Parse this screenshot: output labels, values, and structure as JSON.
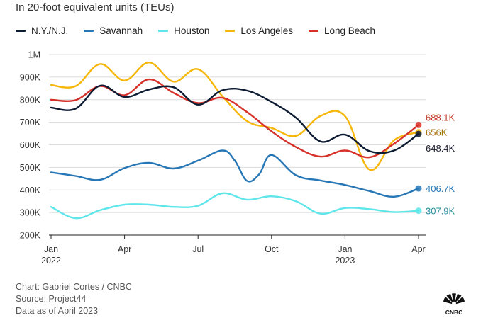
{
  "subtitle": "In 20-foot equivalent units (TEUs)",
  "footer": {
    "credit": "Chart: Gabriel Cortes / CNBC",
    "source": "Source: Project44",
    "asof": "Data as of April 2023"
  },
  "logo": {
    "text": "CNBC"
  },
  "chart_data": {
    "type": "line",
    "title": "",
    "subtitle": "In 20-foot equivalent units (TEUs)",
    "xlabel": "",
    "ylabel": "",
    "ylim": [
      200000,
      1000000
    ],
    "y_ticks": [
      {
        "value": 1000000,
        "label": "1M"
      },
      {
        "value": 900000,
        "label": "900K"
      },
      {
        "value": 800000,
        "label": "800K"
      },
      {
        "value": 700000,
        "label": "700K"
      },
      {
        "value": 600000,
        "label": "600K"
      },
      {
        "value": 500000,
        "label": "500K"
      },
      {
        "value": 400000,
        "label": "400K"
      },
      {
        "value": 300000,
        "label": "300K"
      },
      {
        "value": 200000,
        "label": "200K"
      }
    ],
    "x_domain": [
      0,
      15
    ],
    "x_ticks": [
      {
        "x": 0,
        "label": "Jan",
        "year": "2022"
      },
      {
        "x": 3,
        "label": "Apr",
        "year": ""
      },
      {
        "x": 6,
        "label": "Jul",
        "year": ""
      },
      {
        "x": 9,
        "label": "Oct",
        "year": ""
      },
      {
        "x": 12,
        "label": "Jan",
        "year": "2023"
      },
      {
        "x": 15,
        "label": "Apr",
        "year": ""
      }
    ],
    "legend_position": "top-left",
    "series": [
      {
        "name": "Savannah",
        "color": "#2777b6",
        "end_label": "406.7K",
        "x": [
          0,
          1,
          2,
          3,
          4,
          5,
          6,
          7,
          7.5,
          8,
          8.5,
          9,
          10,
          11,
          12,
          13,
          14,
          15
        ],
        "values": [
          478000,
          462000,
          445000,
          497000,
          520000,
          495000,
          530000,
          575000,
          530000,
          440000,
          470000,
          555000,
          465000,
          442000,
          422000,
          395000,
          370000,
          406700
        ]
      },
      {
        "name": "Houston",
        "color": "#5ee6ea",
        "end_label": "307.9K",
        "x": [
          0,
          1,
          2,
          3,
          4,
          5,
          6,
          7,
          8,
          9,
          10,
          11,
          12,
          13,
          14,
          15
        ],
        "values": [
          325000,
          275000,
          310000,
          335000,
          335000,
          325000,
          330000,
          385000,
          357000,
          372000,
          350000,
          295000,
          320000,
          315000,
          302000,
          307900
        ]
      },
      {
        "name": "Los Angeles",
        "color": "#f6b70a",
        "end_label": "656K",
        "x": [
          0,
          1,
          2,
          3,
          4,
          5,
          6,
          7,
          8,
          9,
          10,
          11,
          12,
          13,
          14,
          15
        ],
        "values": [
          865000,
          860000,
          958000,
          885000,
          965000,
          880000,
          935000,
          815000,
          705000,
          675000,
          640000,
          728000,
          727000,
          490000,
          620000,
          656000
        ]
      },
      {
        "name": "Long Beach",
        "color": "#d6312b",
        "end_label": "688.1K",
        "x": [
          0,
          1,
          2,
          3,
          4,
          5,
          6,
          7,
          8,
          9,
          10,
          11,
          12,
          13,
          14,
          15
        ],
        "values": [
          800000,
          798000,
          860000,
          820000,
          890000,
          830000,
          785000,
          808000,
          745000,
          660000,
          590000,
          548000,
          575000,
          545000,
          605000,
          688100
        ]
      },
      {
        "name": "N.Y./N.J.",
        "color": "#0d1b33",
        "end_label": "648.4K",
        "x": [
          0,
          1,
          2,
          3,
          4,
          5,
          6,
          7,
          8,
          9,
          10,
          11,
          12,
          13,
          14,
          15
        ],
        "values": [
          765000,
          760000,
          862000,
          812000,
          845000,
          855000,
          778000,
          842000,
          840000,
          790000,
          720000,
          615000,
          645000,
          572000,
          575000,
          648400
        ]
      }
    ],
    "legend_order": [
      "N.Y./N.J.",
      "Savannah",
      "Houston",
      "Los Angeles",
      "Long Beach"
    ]
  }
}
